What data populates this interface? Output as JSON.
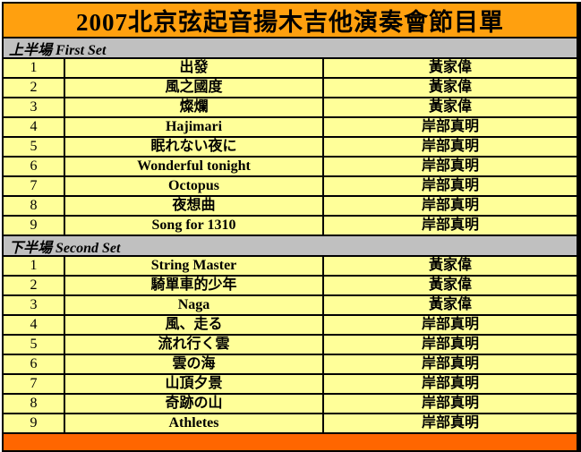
{
  "title": "2007北京弦起音揚木吉他演奏會節目單",
  "colors": {
    "header_bg": "#FFA00F",
    "footer_bg": "#FF6600",
    "row_bg": "#FFFF99",
    "section_bg": "#C0C0C0",
    "border": "#000000"
  },
  "sets": [
    {
      "label": "上半場 First Set",
      "rows": [
        {
          "num": "1",
          "song": "出發",
          "artist": "黃家偉"
        },
        {
          "num": "2",
          "song": "風之國度",
          "artist": "黃家偉"
        },
        {
          "num": "3",
          "song": "燦爛",
          "artist": "黃家偉"
        },
        {
          "num": "4",
          "song": "Hajimari",
          "artist": "岸部真明"
        },
        {
          "num": "5",
          "song": "眠れない夜に",
          "artist": "岸部真明"
        },
        {
          "num": "6",
          "song": "Wonderful tonight",
          "artist": "岸部真明"
        },
        {
          "num": "7",
          "song": "Octopus",
          "artist": "岸部真明"
        },
        {
          "num": "8",
          "song": "夜想曲",
          "artist": "岸部真明"
        },
        {
          "num": "9",
          "song": "Song for 1310",
          "artist": "岸部真明"
        }
      ]
    },
    {
      "label": "下半場 Second Set",
      "rows": [
        {
          "num": "1",
          "song": "String Master",
          "artist": "黃家偉"
        },
        {
          "num": "2",
          "song": "騎單車的少年",
          "artist": "黃家偉"
        },
        {
          "num": "3",
          "song": "Naga",
          "artist": "黃家偉"
        },
        {
          "num": "4",
          "song": "風、走る",
          "artist": "岸部真明"
        },
        {
          "num": "5",
          "song": "流れ行く雲",
          "artist": "岸部真明"
        },
        {
          "num": "6",
          "song": "雲の海",
          "artist": "岸部真明"
        },
        {
          "num": "7",
          "song": "山頂夕景",
          "artist": "岸部真明"
        },
        {
          "num": "8",
          "song": "奇跡の山",
          "artist": "岸部真明"
        },
        {
          "num": "9",
          "song": "Athletes",
          "artist": "岸部真明"
        }
      ]
    }
  ]
}
